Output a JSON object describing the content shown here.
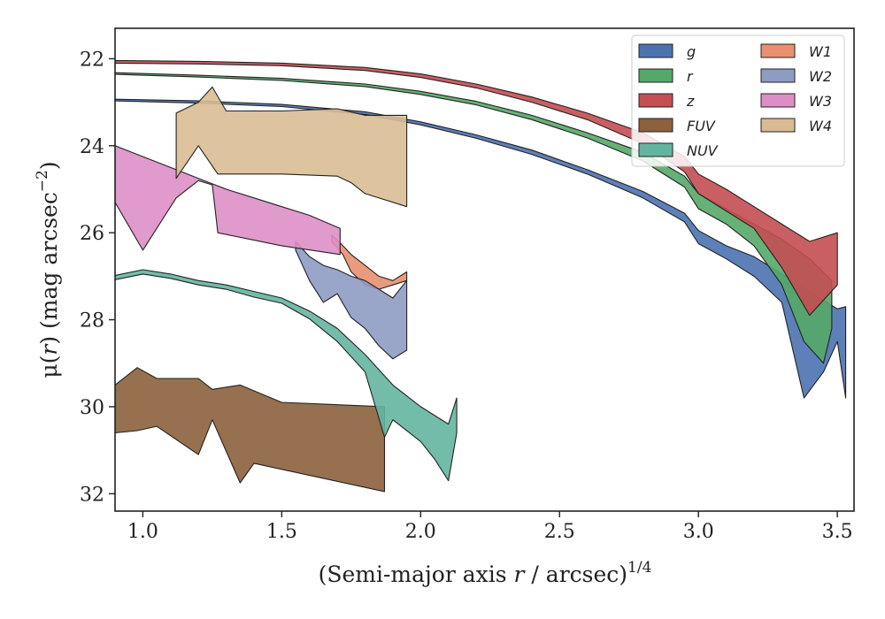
{
  "chart_data": {
    "type": "area",
    "title": "",
    "xlabel_parts": [
      "(Semi-major axis ",
      "r",
      " / arcsec)",
      "1/4"
    ],
    "ylabel_parts": [
      "μ(",
      "r",
      ") (mag arcsec",
      "−2",
      ")"
    ],
    "xlim": [
      0.9,
      3.56
    ],
    "ylim": [
      32.4,
      21.3
    ],
    "y_inverted": true,
    "xticks": [
      1.0,
      1.5,
      2.0,
      2.5,
      3.0,
      3.5
    ],
    "xtick_labels": [
      "1.0",
      "1.5",
      "2.0",
      "2.5",
      "3.0",
      "3.5"
    ],
    "yticks": [
      22,
      24,
      26,
      28,
      30,
      32
    ],
    "ytick_labels": [
      "22",
      "24",
      "26",
      "28",
      "30",
      "32"
    ],
    "grid": false,
    "legend_position": "top-right",
    "legend_columns": 2,
    "series": [
      {
        "name": "g",
        "color": "#4c72b0",
        "upper": [
          [
            0.9,
            22.93
          ],
          [
            1.2,
            22.97
          ],
          [
            1.5,
            23.05
          ],
          [
            1.8,
            23.22
          ],
          [
            2.0,
            23.45
          ],
          [
            2.2,
            23.75
          ],
          [
            2.4,
            24.1
          ],
          [
            2.6,
            24.55
          ],
          [
            2.8,
            25.05
          ],
          [
            2.95,
            25.55
          ],
          [
            3.0,
            25.95
          ],
          [
            3.1,
            26.3
          ],
          [
            3.2,
            26.55
          ],
          [
            3.3,
            26.95
          ],
          [
            3.4,
            27.35
          ],
          [
            3.5,
            27.75
          ],
          [
            3.53,
            27.7
          ]
        ],
        "lower": [
          [
            0.9,
            22.97
          ],
          [
            1.2,
            23.02
          ],
          [
            1.5,
            23.1
          ],
          [
            1.8,
            23.28
          ],
          [
            2.0,
            23.52
          ],
          [
            2.2,
            23.83
          ],
          [
            2.4,
            24.2
          ],
          [
            2.6,
            24.65
          ],
          [
            2.8,
            25.2
          ],
          [
            2.95,
            25.75
          ],
          [
            3.0,
            26.25
          ],
          [
            3.1,
            26.6
          ],
          [
            3.2,
            27.0
          ],
          [
            3.3,
            27.6
          ],
          [
            3.38,
            29.8
          ],
          [
            3.45,
            29.2
          ],
          [
            3.5,
            28.5
          ],
          [
            3.53,
            29.8
          ]
        ]
      },
      {
        "name": "r",
        "color": "#55a868",
        "upper": [
          [
            0.9,
            22.32
          ],
          [
            1.2,
            22.38
          ],
          [
            1.5,
            22.45
          ],
          [
            1.8,
            22.58
          ],
          [
            2.0,
            22.75
          ],
          [
            2.2,
            22.98
          ],
          [
            2.4,
            23.3
          ],
          [
            2.6,
            23.7
          ],
          [
            2.8,
            24.15
          ],
          [
            2.95,
            24.7
          ],
          [
            3.0,
            25.1
          ],
          [
            3.1,
            25.45
          ],
          [
            3.2,
            25.8
          ],
          [
            3.3,
            26.15
          ],
          [
            3.4,
            26.6
          ],
          [
            3.48,
            27.1
          ]
        ],
        "lower": [
          [
            0.9,
            22.36
          ],
          [
            1.2,
            22.42
          ],
          [
            1.5,
            22.5
          ],
          [
            1.8,
            22.64
          ],
          [
            2.0,
            22.82
          ],
          [
            2.2,
            23.06
          ],
          [
            2.4,
            23.4
          ],
          [
            2.6,
            23.82
          ],
          [
            2.8,
            24.35
          ],
          [
            2.95,
            24.95
          ],
          [
            3.0,
            25.45
          ],
          [
            3.1,
            25.8
          ],
          [
            3.2,
            26.3
          ],
          [
            3.3,
            27.2
          ],
          [
            3.38,
            28.5
          ],
          [
            3.45,
            29.0
          ],
          [
            3.48,
            28.2
          ]
        ]
      },
      {
        "name": "z",
        "color": "#c44e52",
        "upper": [
          [
            0.9,
            22.04
          ],
          [
            1.2,
            22.06
          ],
          [
            1.5,
            22.1
          ],
          [
            1.8,
            22.2
          ],
          [
            2.0,
            22.35
          ],
          [
            2.2,
            22.58
          ],
          [
            2.4,
            22.88
          ],
          [
            2.6,
            23.25
          ],
          [
            2.8,
            23.7
          ],
          [
            2.95,
            24.25
          ],
          [
            3.0,
            24.65
          ],
          [
            3.1,
            25.0
          ],
          [
            3.2,
            25.4
          ],
          [
            3.3,
            25.8
          ],
          [
            3.4,
            26.2
          ],
          [
            3.5,
            26.0
          ]
        ],
        "lower": [
          [
            0.9,
            22.1
          ],
          [
            1.2,
            22.12
          ],
          [
            1.5,
            22.16
          ],
          [
            1.8,
            22.27
          ],
          [
            2.0,
            22.43
          ],
          [
            2.2,
            22.67
          ],
          [
            2.4,
            23.0
          ],
          [
            2.6,
            23.4
          ],
          [
            2.8,
            23.95
          ],
          [
            2.95,
            24.6
          ],
          [
            3.0,
            25.1
          ],
          [
            3.1,
            25.5
          ],
          [
            3.2,
            25.9
          ],
          [
            3.3,
            26.8
          ],
          [
            3.4,
            27.9
          ],
          [
            3.5,
            27.2
          ]
        ]
      },
      {
        "name": "FUV",
        "color": "#8c613c",
        "upper": [
          [
            0.9,
            29.5
          ],
          [
            0.98,
            29.1
          ],
          [
            1.05,
            29.35
          ],
          [
            1.2,
            29.35
          ],
          [
            1.25,
            29.6
          ],
          [
            1.35,
            29.5
          ],
          [
            1.5,
            29.9
          ],
          [
            1.87,
            30.0
          ]
        ],
        "lower": [
          [
            0.9,
            30.6
          ],
          [
            0.98,
            30.55
          ],
          [
            1.05,
            30.45
          ],
          [
            1.2,
            31.1
          ],
          [
            1.25,
            30.3
          ],
          [
            1.35,
            31.75
          ],
          [
            1.4,
            31.3
          ],
          [
            1.87,
            31.95
          ]
        ]
      },
      {
        "name": "NUV",
        "color": "#64b5a0",
        "upper": [
          [
            0.9,
            26.98
          ],
          [
            1.0,
            26.85
          ],
          [
            1.1,
            26.95
          ],
          [
            1.2,
            27.1
          ],
          [
            1.3,
            27.2
          ],
          [
            1.4,
            27.35
          ],
          [
            1.5,
            27.5
          ],
          [
            1.6,
            27.8
          ],
          [
            1.7,
            28.2
          ],
          [
            1.8,
            28.8
          ],
          [
            1.9,
            29.5
          ],
          [
            2.0,
            30.0
          ],
          [
            2.1,
            30.4
          ],
          [
            2.13,
            29.8
          ]
        ],
        "lower": [
          [
            0.9,
            27.08
          ],
          [
            1.0,
            26.95
          ],
          [
            1.1,
            27.05
          ],
          [
            1.2,
            27.2
          ],
          [
            1.3,
            27.3
          ],
          [
            1.4,
            27.48
          ],
          [
            1.5,
            27.62
          ],
          [
            1.6,
            27.98
          ],
          [
            1.7,
            28.5
          ],
          [
            1.8,
            29.2
          ],
          [
            1.87,
            30.7
          ],
          [
            1.9,
            30.3
          ],
          [
            2.0,
            30.8
          ],
          [
            2.05,
            31.2
          ],
          [
            2.1,
            31.7
          ],
          [
            2.13,
            30.6
          ]
        ]
      },
      {
        "name": "W1",
        "color": "#e8906f",
        "upper": [
          [
            1.68,
            26.05
          ],
          [
            1.72,
            26.3
          ],
          [
            1.75,
            26.5
          ],
          [
            1.8,
            26.75
          ],
          [
            1.85,
            27.0
          ],
          [
            1.9,
            27.1
          ],
          [
            1.95,
            26.9
          ]
        ],
        "lower": [
          [
            1.68,
            26.2
          ],
          [
            1.72,
            26.5
          ],
          [
            1.75,
            26.9
          ],
          [
            1.8,
            27.2
          ],
          [
            1.85,
            27.3
          ],
          [
            1.9,
            27.2
          ],
          [
            1.95,
            27.1
          ]
        ]
      },
      {
        "name": "W2",
        "color": "#8e9bc3",
        "upper": [
          [
            1.55,
            26.2
          ],
          [
            1.6,
            26.55
          ],
          [
            1.65,
            26.75
          ],
          [
            1.7,
            26.85
          ],
          [
            1.75,
            27.0
          ],
          [
            1.8,
            27.1
          ],
          [
            1.85,
            27.3
          ],
          [
            1.9,
            27.5
          ],
          [
            1.95,
            27.1
          ]
        ],
        "lower": [
          [
            1.55,
            26.4
          ],
          [
            1.6,
            27.1
          ],
          [
            1.65,
            27.6
          ],
          [
            1.7,
            27.4
          ],
          [
            1.75,
            27.95
          ],
          [
            1.8,
            28.2
          ],
          [
            1.85,
            28.6
          ],
          [
            1.9,
            28.9
          ],
          [
            1.95,
            28.7
          ]
        ]
      },
      {
        "name": "W3",
        "color": "#dd8fc5",
        "upper": [
          [
            0.9,
            24.0
          ],
          [
            1.0,
            24.25
          ],
          [
            1.1,
            24.5
          ],
          [
            1.2,
            24.75
          ],
          [
            1.3,
            25.0
          ],
          [
            1.4,
            25.2
          ],
          [
            1.5,
            25.4
          ],
          [
            1.6,
            25.6
          ],
          [
            1.71,
            25.9
          ]
        ],
        "lower": [
          [
            0.9,
            25.3
          ],
          [
            1.0,
            26.4
          ],
          [
            1.12,
            25.2
          ],
          [
            1.2,
            24.8
          ],
          [
            1.25,
            24.9
          ],
          [
            1.27,
            26.0
          ],
          [
            1.5,
            26.3
          ],
          [
            1.71,
            26.5
          ]
        ]
      },
      {
        "name": "W4",
        "color": "#d9bc94",
        "upper": [
          [
            1.12,
            23.25
          ],
          [
            1.2,
            23.0
          ],
          [
            1.25,
            22.65
          ],
          [
            1.3,
            23.2
          ],
          [
            1.5,
            23.2
          ],
          [
            1.7,
            23.15
          ],
          [
            1.8,
            23.3
          ],
          [
            1.95,
            23.3
          ]
        ],
        "lower": [
          [
            1.12,
            24.75
          ],
          [
            1.2,
            24.0
          ],
          [
            1.27,
            24.65
          ],
          [
            1.5,
            24.65
          ],
          [
            1.7,
            24.7
          ],
          [
            1.75,
            24.85
          ],
          [
            1.8,
            25.1
          ],
          [
            1.95,
            25.4
          ]
        ]
      }
    ]
  }
}
